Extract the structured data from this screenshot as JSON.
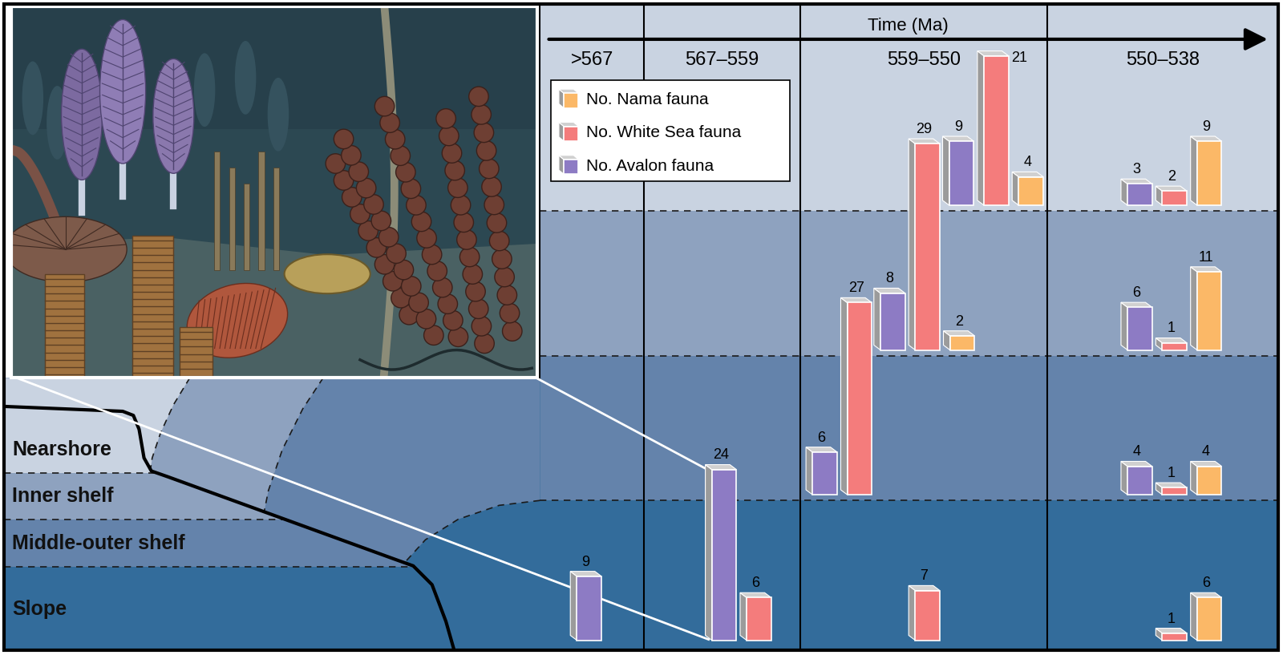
{
  "chart_data": {
    "type": "bar",
    "xlabel": "Time (Ma)",
    "categories": [
      ">567",
      "567–559",
      "559–550",
      "550–538"
    ],
    "zones": [
      "Nearshore",
      "Inner shelf",
      "Middle-outer shelf",
      "Slope"
    ],
    "series": [
      {
        "name": "No. Nama fauna",
        "color": "#fbb867",
        "values": [
          [
            null,
            null,
            4,
            9
          ],
          [
            null,
            null,
            2,
            11
          ],
          [
            null,
            null,
            null,
            4
          ],
          [
            null,
            null,
            null,
            6
          ]
        ]
      },
      {
        "name": "No. White Sea fauna",
        "color": "#f47c7c",
        "values": [
          [
            null,
            null,
            21,
            2
          ],
          [
            null,
            null,
            29,
            1
          ],
          [
            null,
            null,
            27,
            1
          ],
          [
            null,
            6,
            7,
            1
          ]
        ]
      },
      {
        "name": "No. Avalon fauna",
        "color": "#8d7bc4",
        "values": [
          [
            null,
            null,
            9,
            3
          ],
          [
            null,
            null,
            8,
            6
          ],
          [
            null,
            null,
            6,
            4
          ],
          [
            9,
            24,
            null,
            null
          ]
        ]
      }
    ],
    "data_labels": true,
    "legend": "upper left"
  }
}
